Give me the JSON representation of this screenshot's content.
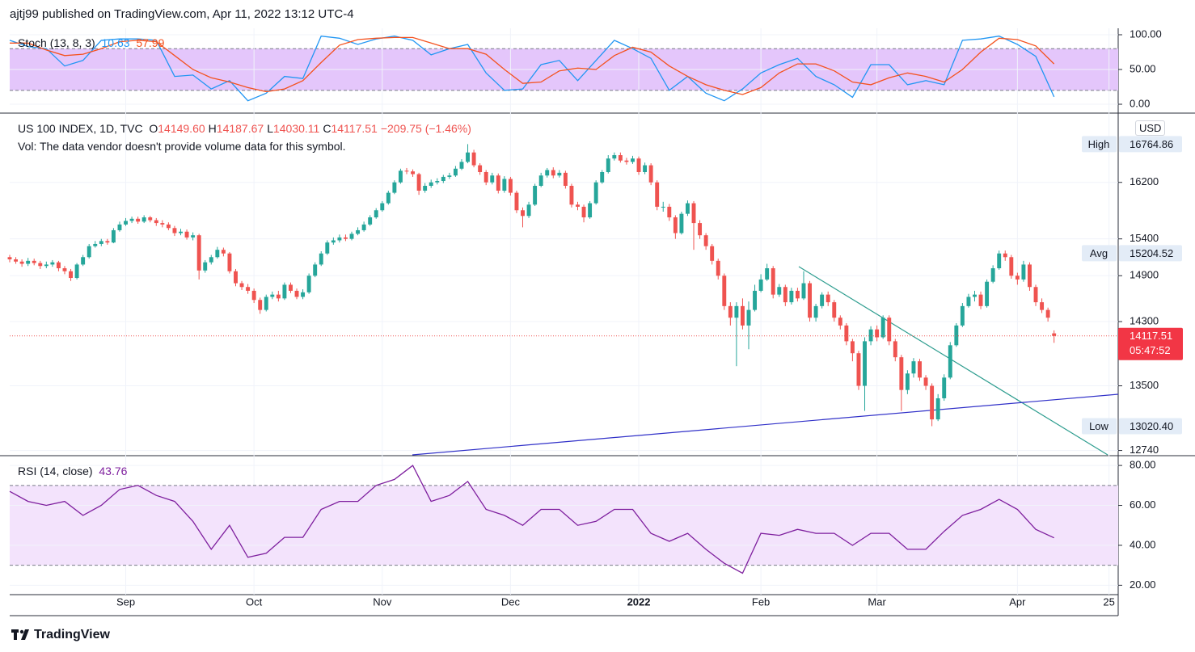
{
  "header": {
    "text": "ajtj99 published on TradingView.com, Apr 11, 2022 13:12 UTC-4"
  },
  "footer": {
    "brand": "TradingView"
  },
  "chart_data": [
    {
      "type": "line",
      "title": "Stoch (13, 8, 3)",
      "x": [
        0,
        3,
        6,
        9,
        12,
        15,
        18,
        21,
        24,
        27,
        30,
        33,
        36,
        39,
        42,
        45,
        48,
        51,
        54,
        57,
        60,
        63,
        66,
        69,
        72,
        75,
        78,
        81,
        84,
        87,
        90,
        93,
        96,
        99,
        102,
        105,
        108,
        111,
        114,
        117,
        120,
        123,
        126,
        129,
        132,
        135,
        138,
        141,
        144,
        147,
        150,
        153,
        156,
        159,
        162,
        165,
        168,
        171
      ],
      "series": [
        {
          "color": "#2196f3",
          "values": [
            92,
            83,
            80,
            55,
            63,
            92,
            94,
            94,
            92,
            40,
            42,
            22,
            34,
            5,
            16,
            40,
            37,
            98,
            95,
            86,
            94,
            98,
            92,
            71,
            80,
            86,
            45,
            20,
            22,
            57,
            63,
            34,
            63,
            92,
            80,
            66,
            20,
            40,
            16,
            5,
            22,
            45,
            57,
            66,
            40,
            28,
            10,
            57,
            57,
            28,
            34,
            28,
            92,
            94,
            98,
            86,
            69,
            10.63
          ]
        },
        {
          "color": "#f4511e",
          "values": [
            88,
            88,
            78,
            70,
            72,
            80,
            90,
            92,
            90,
            70,
            50,
            38,
            32,
            24,
            18,
            22,
            34,
            60,
            85,
            93,
            95,
            96,
            96,
            88,
            80,
            80,
            72,
            50,
            30,
            32,
            48,
            52,
            50,
            70,
            82,
            75,
            55,
            40,
            28,
            20,
            14,
            24,
            45,
            58,
            58,
            48,
            32,
            28,
            38,
            45,
            40,
            32,
            50,
            75,
            95,
            93,
            84,
            57.99
          ]
        }
      ],
      "xlim": [
        0,
        181.5
      ],
      "ylim": [
        -11.6,
        109.3
      ],
      "yticks": [
        {
          "value": 0,
          "label": "0.00"
        },
        {
          "value": 50,
          "label": "50.00"
        },
        {
          "value": 100,
          "label": "100.00"
        }
      ],
      "bands": [
        20,
        80
      ],
      "band_color": "#e4c6fb",
      "grid": true
    },
    {
      "type": "candlestick",
      "title": "US 100 INDEX, 1D, TVC",
      "ohlc_legend": [
        {
          "key": "O",
          "label": "14149.60"
        },
        {
          "key": "H",
          "label": "14187.67"
        },
        {
          "key": "L",
          "label": "14030.11"
        },
        {
          "key": "C",
          "label": "14117.51"
        }
      ],
      "change_label": "−209.75 (−1.46%)",
      "note": "Vol: The data vendor doesn't provide volume data for this symbol.",
      "currency": "USD",
      "open": [
        15150,
        15120,
        15090,
        15060,
        15100,
        15070,
        15030,
        15050,
        15080,
        15000,
        14960,
        14870,
        15050,
        15150,
        15300,
        15330,
        15370,
        15350,
        15520,
        15600,
        15650,
        15680,
        15640,
        15700,
        15660,
        15620,
        15600,
        15550,
        15480,
        15500,
        15420,
        15450,
        14970,
        15080,
        15150,
        15250,
        15200,
        14960,
        14800,
        14750,
        14700,
        14580,
        14450,
        14620,
        14650,
        14600,
        14780,
        14700,
        14620,
        14680,
        14900,
        15050,
        15200,
        15350,
        15380,
        15420,
        15400,
        15470,
        15520,
        15600,
        15700,
        15800,
        15900,
        16050,
        16200,
        16370,
        16360,
        16320,
        16080,
        16150,
        16200,
        16220,
        16280,
        16300,
        16400,
        16500,
        16640,
        16450,
        16350,
        16200,
        16300,
        16080,
        16250,
        16050,
        15800,
        15720,
        15880,
        16150,
        16300,
        16380,
        16300,
        16340,
        16150,
        15880,
        15850,
        15700,
        15900,
        16200,
        16350,
        16550,
        16600,
        16520,
        16500,
        16550,
        16350,
        16450,
        16200,
        15850,
        15850,
        15700,
        15480,
        15750,
        15900,
        15620,
        15450,
        15300,
        15100,
        14900,
        14500,
        14350,
        14500,
        14250,
        14450,
        14700,
        14850,
        15000,
        14650,
        14750,
        14550,
        14700,
        14600,
        14800,
        14350,
        14500,
        14650,
        14550,
        14350,
        14250,
        14050,
        13900,
        13500,
        14050,
        14200,
        14100,
        14350,
        14050,
        13850,
        13450,
        13650,
        13800,
        13600,
        13500,
        13100,
        13350,
        13600,
        14000,
        14250,
        14500,
        14620,
        14650,
        14500,
        14820,
        15000,
        15200,
        15150,
        14900,
        14850,
        15050,
        14750,
        14550,
        14450,
        14149.6
      ],
      "high": [
        15180,
        15150,
        15120,
        15140,
        15130,
        15100,
        15090,
        15110,
        15100,
        15030,
        14990,
        15070,
        15180,
        15330,
        15370,
        15400,
        15400,
        15550,
        15640,
        15690,
        15710,
        15710,
        15730,
        15720,
        15690,
        15660,
        15630,
        15580,
        15540,
        15530,
        15490,
        15470,
        15110,
        15180,
        15290,
        15280,
        15220,
        14990,
        14830,
        14790,
        14730,
        14610,
        14650,
        14690,
        14700,
        14810,
        14810,
        14730,
        14720,
        14930,
        15080,
        15230,
        15380,
        15420,
        15460,
        15460,
        15500,
        15560,
        15640,
        15730,
        15830,
        15930,
        16080,
        16230,
        16400,
        16410,
        16390,
        16340,
        16190,
        16240,
        16260,
        16310,
        16340,
        16440,
        16540,
        16764.86,
        16680,
        16480,
        16380,
        16340,
        16330,
        16290,
        16280,
        16080,
        15840,
        15920,
        16180,
        16340,
        16410,
        16420,
        16380,
        16370,
        16180,
        15920,
        15880,
        15930,
        16230,
        16380,
        16600,
        16640,
        16640,
        16560,
        16590,
        16580,
        16490,
        16480,
        16230,
        15920,
        15890,
        15730,
        15780,
        15940,
        15930,
        15660,
        15480,
        15330,
        15130,
        14930,
        14550,
        14550,
        14600,
        14560,
        14780,
        14920,
        15060,
        15030,
        14790,
        14780,
        14740,
        14740,
        14960,
        14830,
        14530,
        14680,
        14690,
        14580,
        14380,
        14280,
        14080,
        13930,
        14100,
        14240,
        14250,
        14380,
        14380,
        14080,
        13880,
        13690,
        13840,
        13830,
        13630,
        13530,
        13400,
        13640,
        14040,
        14280,
        14540,
        14660,
        14700,
        14690,
        14850,
        15040,
        15240,
        15240,
        15180,
        14940,
        15100,
        15080,
        14780,
        14600,
        14480,
        14187.67
      ],
      "low": [
        15080,
        15060,
        15020,
        15030,
        15040,
        14990,
        15000,
        15020,
        14960,
        14920,
        14830,
        14850,
        15030,
        15130,
        15280,
        15300,
        15320,
        15340,
        15500,
        15580,
        15620,
        15610,
        15620,
        15630,
        15580,
        15560,
        15520,
        15440,
        15450,
        15390,
        15380,
        14850,
        14940,
        15050,
        15130,
        15160,
        14930,
        14760,
        14710,
        14660,
        14540,
        14400,
        14430,
        14590,
        14560,
        14580,
        14670,
        14590,
        14590,
        14660,
        14880,
        15030,
        15180,
        15320,
        15350,
        15370,
        15380,
        15450,
        15500,
        15580,
        15680,
        15780,
        15880,
        16030,
        16180,
        16320,
        16280,
        16020,
        16050,
        16120,
        16170,
        16190,
        16250,
        16280,
        16380,
        16480,
        16420,
        16310,
        16160,
        16170,
        16040,
        16050,
        16010,
        15760,
        15560,
        15690,
        15860,
        16130,
        16270,
        16260,
        16270,
        16110,
        15840,
        15800,
        15630,
        15680,
        15880,
        16180,
        16330,
        16520,
        16490,
        16460,
        16470,
        16310,
        16320,
        16160,
        15800,
        15780,
        15650,
        15400,
        15460,
        15720,
        15250,
        15400,
        15250,
        15050,
        14850,
        14450,
        14250,
        13740,
        14200,
        13950,
        14430,
        14680,
        14830,
        14600,
        14620,
        14500,
        14520,
        14560,
        14580,
        14300,
        14300,
        14470,
        14500,
        14300,
        14200,
        14000,
        13800,
        13450,
        13200,
        14000,
        14050,
        14080,
        14000,
        13800,
        13200,
        13400,
        13600,
        13560,
        13450,
        13020.4,
        13080,
        13320,
        13580,
        13980,
        14230,
        14480,
        14560,
        14460,
        14480,
        14800,
        14980,
        15100,
        14860,
        14780,
        14820,
        14700,
        14500,
        14410,
        14300,
        14030.11
      ],
      "close": [
        15120,
        15090,
        15060,
        15100,
        15070,
        15030,
        15050,
        15080,
        15000,
        14960,
        14870,
        15050,
        15150,
        15300,
        15330,
        15370,
        15350,
        15520,
        15600,
        15650,
        15680,
        15640,
        15700,
        15660,
        15620,
        15600,
        15550,
        15480,
        15500,
        15420,
        15450,
        14970,
        15080,
        15150,
        15250,
        15200,
        14960,
        14800,
        14750,
        14700,
        14580,
        14450,
        14620,
        14650,
        14600,
        14780,
        14700,
        14620,
        14680,
        14900,
        15050,
        15200,
        15350,
        15380,
        15420,
        15400,
        15470,
        15520,
        15600,
        15700,
        15800,
        15900,
        16050,
        16200,
        16370,
        16360,
        16320,
        16080,
        16150,
        16200,
        16220,
        16280,
        16300,
        16400,
        16500,
        16640,
        16450,
        16350,
        16200,
        16300,
        16080,
        16250,
        16050,
        15800,
        15720,
        15880,
        16150,
        16300,
        16380,
        16300,
        16340,
        16150,
        15880,
        15850,
        15700,
        15900,
        16200,
        16350,
        16550,
        16600,
        16520,
        16500,
        16550,
        16350,
        16450,
        16200,
        15850,
        15850,
        15700,
        15480,
        15750,
        15900,
        15620,
        15450,
        15300,
        15100,
        14900,
        14500,
        14350,
        14500,
        14250,
        14450,
        14700,
        14850,
        15000,
        14650,
        14750,
        14550,
        14700,
        14600,
        14800,
        14350,
        14500,
        14650,
        14550,
        14350,
        14250,
        14050,
        13900,
        13500,
        14050,
        14200,
        14100,
        14350,
        14050,
        13850,
        13450,
        13650,
        13800,
        13600,
        13500,
        13100,
        13350,
        13600,
        14000,
        14250,
        14500,
        14620,
        14650,
        14500,
        14820,
        15000,
        15200,
        15150,
        14900,
        14850,
        15050,
        14750,
        14550,
        14450,
        14350,
        14117.51
      ],
      "up_color": "#26a69a",
      "down_color": "#ef5350",
      "price_labels": [
        {
          "name": "High",
          "value": 16764.86
        },
        {
          "name": "Avg",
          "value": 15204.52
        },
        {
          "name": "Low",
          "value": 13020.4,
          "label": "13020.40"
        }
      ],
      "countdown": "05:47:52",
      "xlim": [
        0,
        181.5
      ],
      "ylim": [
        12690,
        17200
      ],
      "log_scale": true,
      "yticks": [
        12740,
        13500,
        14300,
        14900,
        15400,
        16200
      ],
      "xticks": [
        {
          "value": 19,
          "label": "Sep"
        },
        {
          "value": 40,
          "label": "Oct"
        },
        {
          "value": 61,
          "label": "Nov"
        },
        {
          "value": 82,
          "label": "Dec"
        },
        {
          "value": 103,
          "label": "2022"
        },
        {
          "value": 123,
          "label": "Feb"
        },
        {
          "value": 142,
          "label": "Mar"
        },
        {
          "value": 165,
          "label": "Apr"
        },
        {
          "value": 180,
          "label": "25"
        }
      ],
      "grid": true
    },
    {
      "type": "line",
      "title": "RSI (14, close)",
      "x": [
        0,
        3,
        6,
        9,
        12,
        15,
        18,
        21,
        24,
        27,
        30,
        33,
        36,
        39,
        42,
        45,
        48,
        51,
        54,
        57,
        60,
        63,
        66,
        69,
        72,
        75,
        78,
        81,
        84,
        87,
        90,
        93,
        96,
        99,
        102,
        105,
        108,
        111,
        114,
        117,
        120,
        123,
        126,
        129,
        132,
        135,
        138,
        141,
        144,
        147,
        150,
        153,
        156,
        159,
        162,
        165,
        168,
        171
      ],
      "series": [
        {
          "color": "#7e1f9e",
          "values": [
            67,
            62,
            60,
            62,
            55,
            60,
            68,
            70,
            65,
            62,
            52,
            38,
            50,
            34,
            36,
            44,
            44,
            58,
            62,
            62,
            70,
            73,
            80,
            62,
            65,
            72,
            58,
            55,
            50,
            58,
            58,
            50,
            52,
            58,
            58,
            46,
            42,
            46,
            38,
            31,
            26,
            46,
            45,
            48,
            46,
            46,
            40,
            46,
            46,
            38,
            38,
            47,
            55,
            58,
            63,
            58,
            48,
            43.76
          ]
        }
      ],
      "xlim": [
        0,
        181.5
      ],
      "ylim": [
        15.7,
        84.5
      ],
      "yticks": [
        {
          "value": 20,
          "label": "20.00"
        },
        {
          "value": 40,
          "label": "40.00"
        },
        {
          "value": 60,
          "label": "60.00"
        },
        {
          "value": 80,
          "label": "80.00"
        }
      ],
      "bands": [
        30,
        70
      ],
      "band_color": "#f3e3fc",
      "grid": true
    }
  ]
}
